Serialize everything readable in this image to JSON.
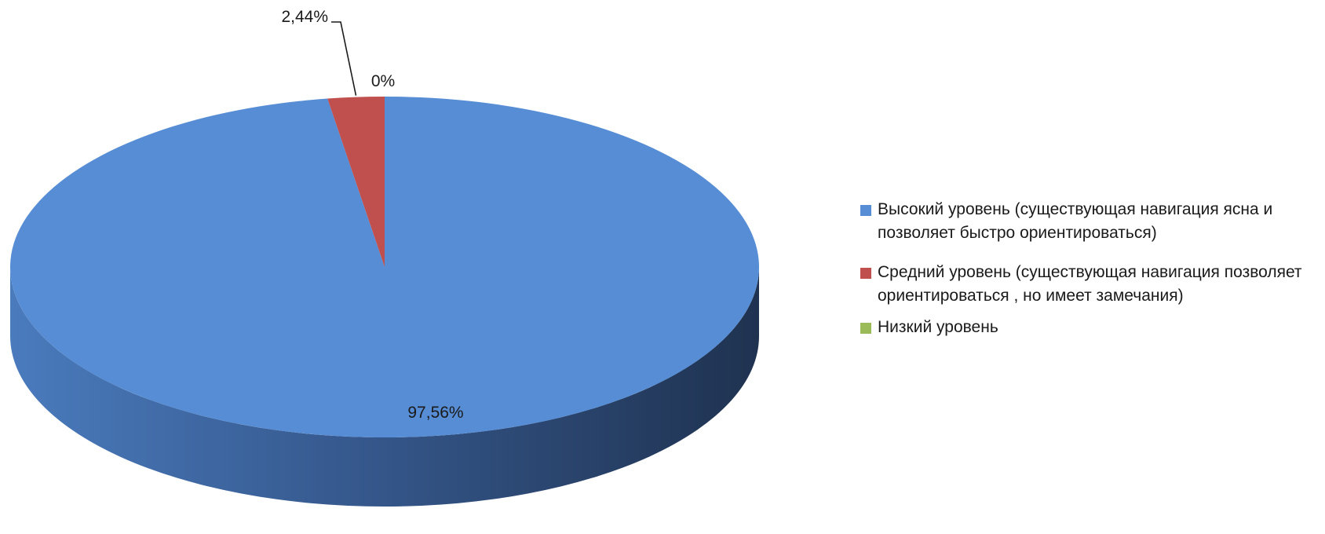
{
  "chart_data": {
    "type": "pie",
    "style": "3d",
    "categories": [
      "Высокий уровень (существующая навигация ясна и позволяет быстро ориентироваться)",
      "Средний уровень (существующая навигация позволяет ориентироваться , но имеет замечания)",
      "Низкий уровень"
    ],
    "values": [
      97.56,
      2.44,
      0
    ],
    "data_labels": [
      "97,56%",
      "2,44%",
      "0%"
    ],
    "colors": [
      "#568dd5",
      "#c0504d",
      "#9bbb59"
    ],
    "legend_position": "right"
  }
}
